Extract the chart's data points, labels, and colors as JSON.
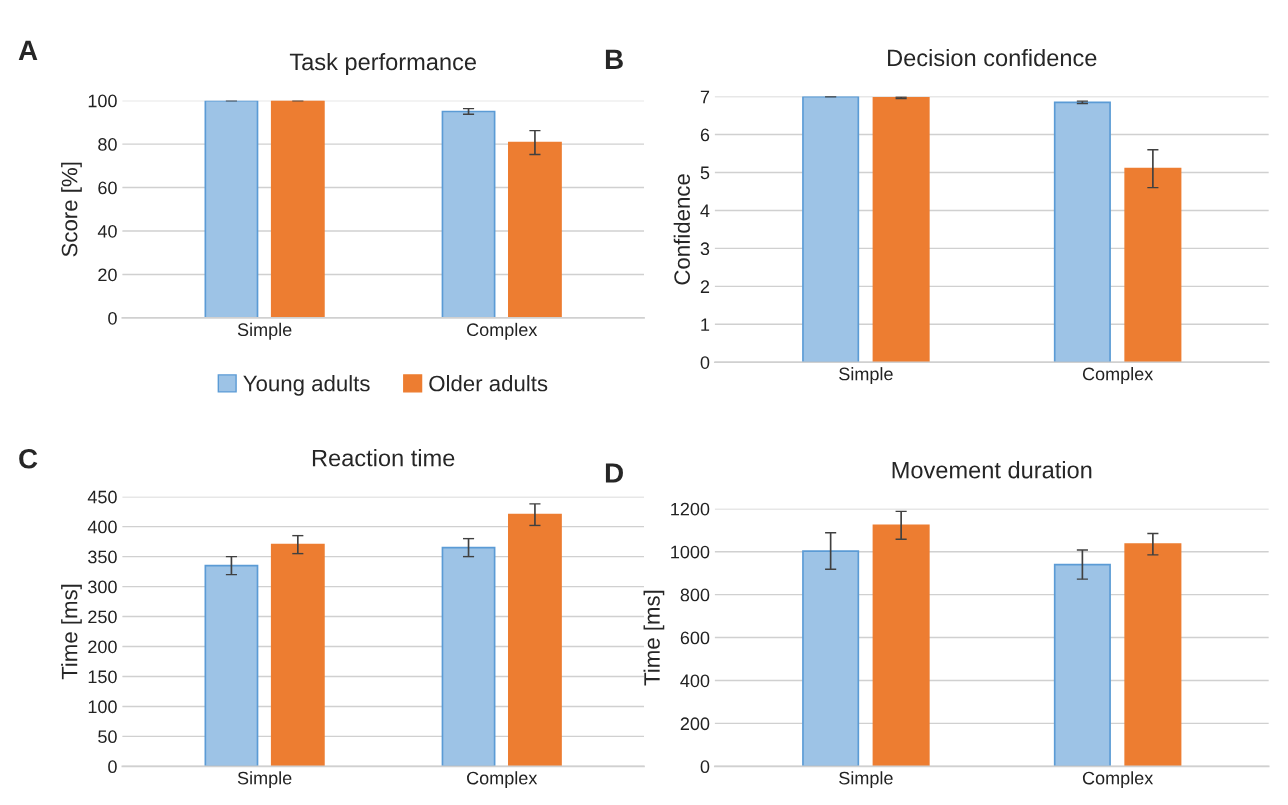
{
  "chart_data": [
    {
      "type": "bar",
      "title": "Task performance",
      "ylabel": "Score [%]",
      "annotations": [
        "A"
      ],
      "categories": [
        "Simple",
        "Complex"
      ],
      "ylim": [
        0,
        100
      ],
      "yticks": [
        0,
        20,
        40,
        60,
        80,
        100
      ],
      "grid": "y",
      "legend": "bottom",
      "series": [
        {
          "name": "Young adults",
          "color": "#5b9bd5",
          "values": [
            100,
            95
          ],
          "errors": [
            0,
            1.3
          ]
        },
        {
          "name": "Older adults",
          "color": "#ed7d31",
          "values": [
            100,
            80.7
          ],
          "errors": [
            0,
            5.5
          ]
        }
      ]
    },
    {
      "type": "bar",
      "title": "Decision confidence",
      "ylabel": "Confidence",
      "annotations": [
        "B"
      ],
      "categories": [
        "Simple",
        "Complex"
      ],
      "ylim": [
        0,
        7
      ],
      "yticks": [
        0,
        1,
        2,
        3,
        4,
        5,
        6,
        7
      ],
      "grid": "y",
      "series": [
        {
          "color": "#5b9bd5",
          "values": [
            7.0,
            6.85
          ],
          "errors": [
            0,
            0.03
          ]
        },
        {
          "color": "#ed7d31",
          "values": [
            6.97,
            5.1
          ],
          "errors": [
            0.02,
            0.5
          ]
        }
      ]
    },
    {
      "type": "bar",
      "title": "Reaction time",
      "ylabel": "Time [ms]",
      "annotations": [
        "C"
      ],
      "categories": [
        "Simple",
        "Complex"
      ],
      "ylim": [
        0,
        450
      ],
      "yticks": [
        0,
        50,
        100,
        150,
        200,
        250,
        300,
        350,
        400,
        450
      ],
      "grid": "y",
      "series": [
        {
          "color": "#5b9bd5",
          "values": [
            335,
            365
          ],
          "errors": [
            15,
            15
          ]
        },
        {
          "color": "#ed7d31",
          "values": [
            370,
            420
          ],
          "errors": [
            15,
            18
          ]
        }
      ]
    },
    {
      "type": "bar",
      "title": "Movement duration",
      "ylabel": "Time [ms]",
      "annotations": [
        "D"
      ],
      "categories": [
        "Simple",
        "Complex"
      ],
      "ylim": [
        0,
        1200
      ],
      "yticks": [
        0,
        200,
        400,
        600,
        800,
        1000,
        1200
      ],
      "grid": "y",
      "series": [
        {
          "color": "#5b9bd5",
          "values": [
            1003,
            940
          ],
          "errors": [
            85,
            68
          ]
        },
        {
          "color": "#ed7d31",
          "values": [
            1123,
            1035
          ],
          "errors": [
            65,
            50
          ]
        }
      ]
    }
  ]
}
